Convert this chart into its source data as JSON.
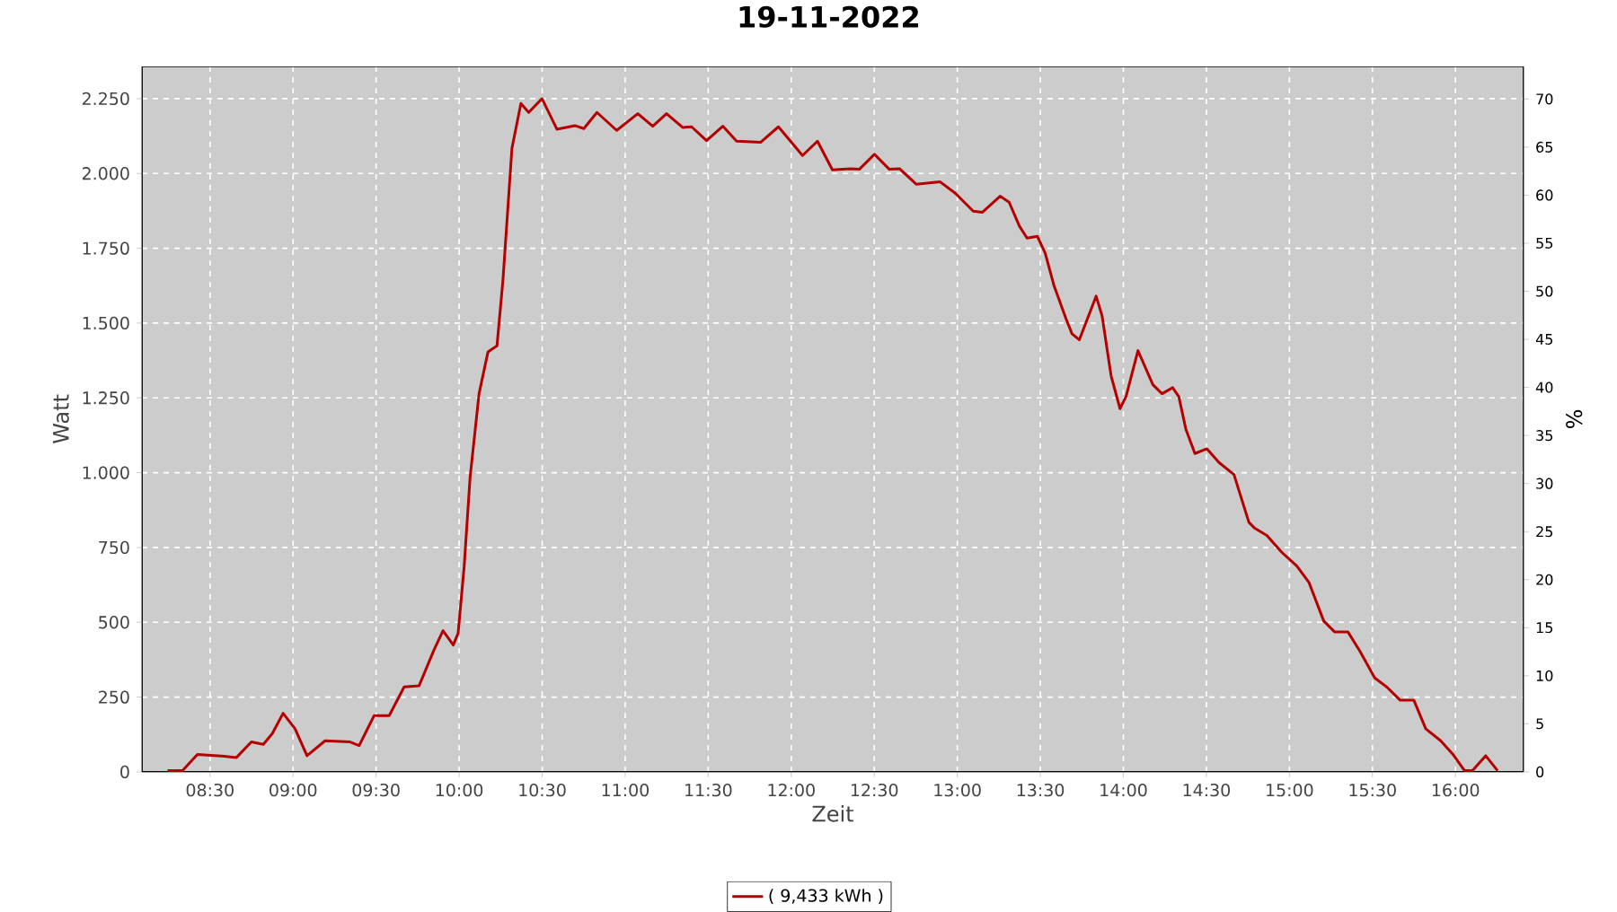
{
  "chart_data": {
    "type": "line",
    "title": "19-11-2022",
    "xlabel": "Zeit",
    "ylabel": "Watt",
    "y2label": "%",
    "x": [
      8.244,
      8.334,
      8.424,
      8.587,
      8.659,
      8.749,
      8.821,
      8.875,
      8.94,
      9.012,
      9.084,
      9.193,
      9.344,
      9.398,
      9.488,
      9.579,
      9.669,
      9.759,
      9.849,
      9.903,
      9.965,
      9.994,
      10.03,
      10.066,
      10.12,
      10.174,
      10.228,
      10.264,
      10.318,
      10.372,
      10.419,
      10.499,
      10.589,
      10.697,
      10.751,
      10.83,
      10.949,
      11.076,
      11.166,
      11.249,
      11.346,
      11.4,
      11.49,
      11.588,
      11.671,
      11.815,
      11.923,
      12.068,
      12.158,
      12.248,
      12.356,
      12.41,
      12.501,
      12.591,
      12.652,
      12.753,
      12.897,
      12.988,
      13.096,
      13.15,
      13.258,
      13.312,
      13.374,
      13.42,
      13.482,
      13.529,
      13.583,
      13.655,
      13.691,
      13.735,
      13.836,
      13.872,
      13.926,
      13.98,
      14.016,
      14.088,
      14.178,
      14.233,
      14.297,
      14.334,
      14.377,
      14.431,
      14.503,
      14.576,
      14.666,
      14.756,
      14.792,
      14.864,
      14.954,
      15.045,
      15.117,
      15.207,
      15.272,
      15.352,
      15.424,
      15.514,
      15.586,
      15.666,
      15.749,
      15.821,
      15.911,
      15.983,
      16.055,
      16.102,
      16.182,
      16.254
    ],
    "series": [
      {
        "name": "( 9,433 kWh )",
        "color": "#b40000",
        "values": [
          4,
          4,
          58,
          52,
          48,
          100,
          92,
          128,
          196,
          144,
          54,
          104,
          100,
          88,
          188,
          188,
          284,
          288,
          408,
          472,
          424,
          464,
          684,
          984,
          1264,
          1404,
          1424,
          1644,
          2084,
          2234,
          2204,
          2250,
          2148,
          2160,
          2150,
          2204,
          2144,
          2200,
          2158,
          2200,
          2154,
          2156,
          2110,
          2158,
          2108,
          2104,
          2156,
          2060,
          2108,
          2012,
          2016,
          2014,
          2064,
          2014,
          2016,
          1964,
          1972,
          1934,
          1874,
          1870,
          1924,
          1904,
          1824,
          1784,
          1790,
          1734,
          1624,
          1514,
          1464,
          1444,
          1590,
          1524,
          1324,
          1214,
          1254,
          1408,
          1294,
          1264,
          1284,
          1254,
          1144,
          1064,
          1080,
          1034,
          994,
          834,
          814,
          790,
          734,
          688,
          634,
          504,
          468,
          468,
          404,
          314,
          284,
          240,
          240,
          144,
          104,
          60,
          4,
          4,
          54,
          4
        ]
      }
    ],
    "xlim": [
      8.09,
      16.41
    ],
    "ylim": [
      0,
      2358
    ],
    "y2lim": [
      0,
      73.4
    ],
    "xticks": [
      {
        "value": 8.5,
        "label": "08:30"
      },
      {
        "value": 9,
        "label": "09:00"
      },
      {
        "value": 9.5,
        "label": "09:30"
      },
      {
        "value": 10,
        "label": "10:00"
      },
      {
        "value": 10.5,
        "label": "10:30"
      },
      {
        "value": 11,
        "label": "11:00"
      },
      {
        "value": 11.5,
        "label": "11:30"
      },
      {
        "value": 12,
        "label": "12:00"
      },
      {
        "value": 12.5,
        "label": "12:30"
      },
      {
        "value": 13,
        "label": "13:00"
      },
      {
        "value": 13.5,
        "label": "13:30"
      },
      {
        "value": 14,
        "label": "14:00"
      },
      {
        "value": 14.5,
        "label": "14:30"
      },
      {
        "value": 15,
        "label": "15:00"
      },
      {
        "value": 15.5,
        "label": "15:30"
      },
      {
        "value": 16,
        "label": "16:00"
      }
    ],
    "yticks": [
      0,
      250,
      500,
      750,
      {
        "value": 1000,
        "label": "1.000"
      },
      {
        "value": 1250,
        "label": "1.250"
      },
      {
        "value": 1500,
        "label": "1.500"
      },
      {
        "value": 1750,
        "label": "1.750"
      },
      {
        "value": 2000,
        "label": "2.000"
      },
      {
        "value": 2250,
        "label": "2.250"
      }
    ],
    "y2ticks": [
      0,
      5,
      10,
      15,
      20,
      25,
      30,
      35,
      40,
      45,
      50,
      55,
      60,
      65,
      70
    ],
    "grid": true,
    "legend": "bottom",
    "line_style": "solid"
  }
}
